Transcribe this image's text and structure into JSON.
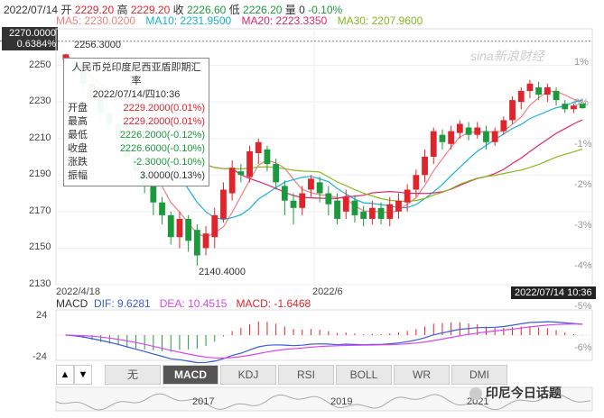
{
  "header": {
    "date": "2022/07/14",
    "open_label": "开",
    "open": "2229.20",
    "high_label": "高",
    "high": "2229.20",
    "close_label": "收",
    "close": "2226.60",
    "low_label": "低",
    "low": "2226.20",
    "vol_label": "量",
    "vol": "0",
    "change": "-0.10%"
  },
  "ma": {
    "ma5": "MA5: 2230.0200",
    "ma10": "MA10: 2231.9500",
    "ma20": "MA20: 2223.3350",
    "ma30": "MA30: 2207.9600"
  },
  "colors": {
    "up": "#e0242b",
    "down": "#1a9a3c",
    "ma5": "#f08080",
    "ma10": "#1ab0d8",
    "ma20": "#e0246b",
    "ma30": "#88b820",
    "dif": "#3b5bdb",
    "dea": "#d946ef"
  },
  "price_badge": {
    "value": "2270.0000",
    "pct": "0.6384%"
  },
  "last_badge": "2022/07/14 10:36",
  "watermark": "sina新浪财经",
  "y_labels": [
    "2250",
    "2230",
    "2210",
    "2190",
    "2170",
    "2150",
    "2130"
  ],
  "pct_labels": [
    "1%",
    "0%",
    "-1%",
    "-2%",
    "-3%",
    "-4%",
    "-5%",
    "-6%"
  ],
  "x_labels": [
    "2022/4/18",
    "2022/6"
  ],
  "high_mark": "2256.3000",
  "low_mark": "2140.4000",
  "tooltip": {
    "title": "人民币兑印度尼西亚盾即期汇率",
    "time": "2022/07/14/四10:36",
    "rows": [
      {
        "k": "开盘",
        "v": "2229.2000(0.01%)",
        "c": "red"
      },
      {
        "k": "最高",
        "v": "2229.2000(0.01%)",
        "c": "red"
      },
      {
        "k": "最低",
        "v": "2226.2000(-0.12%)",
        "c": "green"
      },
      {
        "k": "收盘",
        "v": "2226.6000(-0.10%)",
        "c": "green"
      },
      {
        "k": "涨跌",
        "v": "-2.3000(-0.10%)",
        "c": "green"
      },
      {
        "k": "振幅",
        "v": "3.0000(0.13%)",
        "c": "plain"
      }
    ]
  },
  "macd": {
    "label": "MACD",
    "dif": "DIF: 9.6281",
    "dea": "DEA: 10.4515",
    "macd": "MACD: -1.6468",
    "top": "24",
    "bottom": "-24"
  },
  "tabs": [
    "无",
    "MACD",
    "KDJ",
    "RSI",
    "BOLL",
    "WR",
    "DMI"
  ],
  "active_tab": "MACD",
  "arrows": [
    "▲",
    "▼"
  ],
  "nav_years": [
    "2017",
    "2019",
    "2021"
  ],
  "wechat": "印尼今日话题",
  "chart_data": {
    "type": "candlestick",
    "ylim": [
      2130,
      2270
    ],
    "candles": [
      {
        "o": 2253,
        "c": 2256,
        "h": 2256.3,
        "l": 2250
      },
      {
        "o": 2252,
        "c": 2247,
        "h": 2254,
        "l": 2244
      },
      {
        "o": 2247,
        "c": 2240,
        "h": 2249,
        "l": 2237
      },
      {
        "o": 2240,
        "c": 2232,
        "h": 2242,
        "l": 2229
      },
      {
        "o": 2232,
        "c": 2224,
        "h": 2234,
        "l": 2220
      },
      {
        "o": 2224,
        "c": 2218,
        "h": 2226,
        "l": 2214
      },
      {
        "o": 2218,
        "c": 2210,
        "h": 2220,
        "l": 2206
      },
      {
        "o": 2210,
        "c": 2200,
        "h": 2212,
        "l": 2196
      },
      {
        "o": 2200,
        "c": 2192,
        "h": 2202,
        "l": 2188
      },
      {
        "o": 2192,
        "c": 2184,
        "h": 2195,
        "l": 2180
      },
      {
        "o": 2184,
        "c": 2175,
        "h": 2186,
        "l": 2168
      },
      {
        "o": 2175,
        "c": 2168,
        "h": 2178,
        "l": 2163
      },
      {
        "o": 2168,
        "c": 2156,
        "h": 2170,
        "l": 2152
      },
      {
        "o": 2156,
        "c": 2166,
        "h": 2170,
        "l": 2150
      },
      {
        "o": 2166,
        "c": 2154,
        "h": 2168,
        "l": 2148
      },
      {
        "o": 2160,
        "c": 2146,
        "h": 2163,
        "l": 2140.4
      },
      {
        "o": 2150,
        "c": 2158,
        "h": 2162,
        "l": 2146
      },
      {
        "o": 2156,
        "c": 2168,
        "h": 2172,
        "l": 2150
      },
      {
        "o": 2166,
        "c": 2182,
        "h": 2186,
        "l": 2164
      },
      {
        "o": 2180,
        "c": 2194,
        "h": 2198,
        "l": 2176
      },
      {
        "o": 2192,
        "c": 2190,
        "h": 2196,
        "l": 2186
      },
      {
        "o": 2189,
        "c": 2203,
        "h": 2206,
        "l": 2186
      },
      {
        "o": 2202,
        "c": 2208,
        "h": 2210,
        "l": 2196
      },
      {
        "o": 2204,
        "c": 2196,
        "h": 2206,
        "l": 2192
      },
      {
        "o": 2196,
        "c": 2186,
        "h": 2199,
        "l": 2182
      },
      {
        "o": 2184,
        "c": 2176,
        "h": 2187,
        "l": 2168
      },
      {
        "o": 2176,
        "c": 2172,
        "h": 2180,
        "l": 2163
      },
      {
        "o": 2172,
        "c": 2180,
        "h": 2184,
        "l": 2168
      },
      {
        "o": 2182,
        "c": 2188,
        "h": 2190,
        "l": 2178
      },
      {
        "o": 2186,
        "c": 2180,
        "h": 2189,
        "l": 2175
      },
      {
        "o": 2180,
        "c": 2174,
        "h": 2184,
        "l": 2168
      },
      {
        "o": 2176,
        "c": 2166,
        "h": 2180,
        "l": 2163
      },
      {
        "o": 2170,
        "c": 2178,
        "h": 2182,
        "l": 2166
      },
      {
        "o": 2176,
        "c": 2168,
        "h": 2179,
        "l": 2164
      },
      {
        "o": 2170,
        "c": 2166,
        "h": 2173,
        "l": 2162
      },
      {
        "o": 2166,
        "c": 2172,
        "h": 2176,
        "l": 2163
      },
      {
        "o": 2172,
        "c": 2166,
        "h": 2175,
        "l": 2163
      },
      {
        "o": 2166,
        "c": 2174,
        "h": 2178,
        "l": 2162
      },
      {
        "o": 2170,
        "c": 2176,
        "h": 2180,
        "l": 2166
      },
      {
        "o": 2175,
        "c": 2182,
        "h": 2185,
        "l": 2170
      },
      {
        "o": 2182,
        "c": 2190,
        "h": 2193,
        "l": 2178
      },
      {
        "o": 2190,
        "c": 2200,
        "h": 2204,
        "l": 2186
      },
      {
        "o": 2200,
        "c": 2214,
        "h": 2216,
        "l": 2196
      },
      {
        "o": 2212,
        "c": 2208,
        "h": 2215,
        "l": 2204
      },
      {
        "o": 2207,
        "c": 2214,
        "h": 2217,
        "l": 2204
      },
      {
        "o": 2213,
        "c": 2218,
        "h": 2220,
        "l": 2210
      },
      {
        "o": 2216,
        "c": 2212,
        "h": 2219,
        "l": 2209
      },
      {
        "o": 2212,
        "c": 2216,
        "h": 2219,
        "l": 2210
      },
      {
        "o": 2214,
        "c": 2208,
        "h": 2217,
        "l": 2204
      },
      {
        "o": 2208,
        "c": 2214,
        "h": 2216,
        "l": 2206
      },
      {
        "o": 2214,
        "c": 2220,
        "h": 2222,
        "l": 2212
      },
      {
        "o": 2220,
        "c": 2231,
        "h": 2233,
        "l": 2218
      },
      {
        "o": 2230,
        "c": 2236,
        "h": 2238,
        "l": 2226
      },
      {
        "o": 2236,
        "c": 2240,
        "h": 2242,
        "l": 2232
      },
      {
        "o": 2238,
        "c": 2234,
        "h": 2241,
        "l": 2231
      },
      {
        "o": 2234,
        "c": 2238,
        "h": 2240,
        "l": 2230
      },
      {
        "o": 2236,
        "c": 2231,
        "h": 2238,
        "l": 2228
      },
      {
        "o": 2229,
        "c": 2226,
        "h": 2231,
        "l": 2224
      },
      {
        "o": 2226,
        "c": 2228,
        "h": 2229,
        "l": 2224
      },
      {
        "o": 2229.2,
        "c": 2226.6,
        "h": 2229.2,
        "l": 2226.2
      }
    ],
    "macd_range": [
      -24,
      24
    ]
  }
}
